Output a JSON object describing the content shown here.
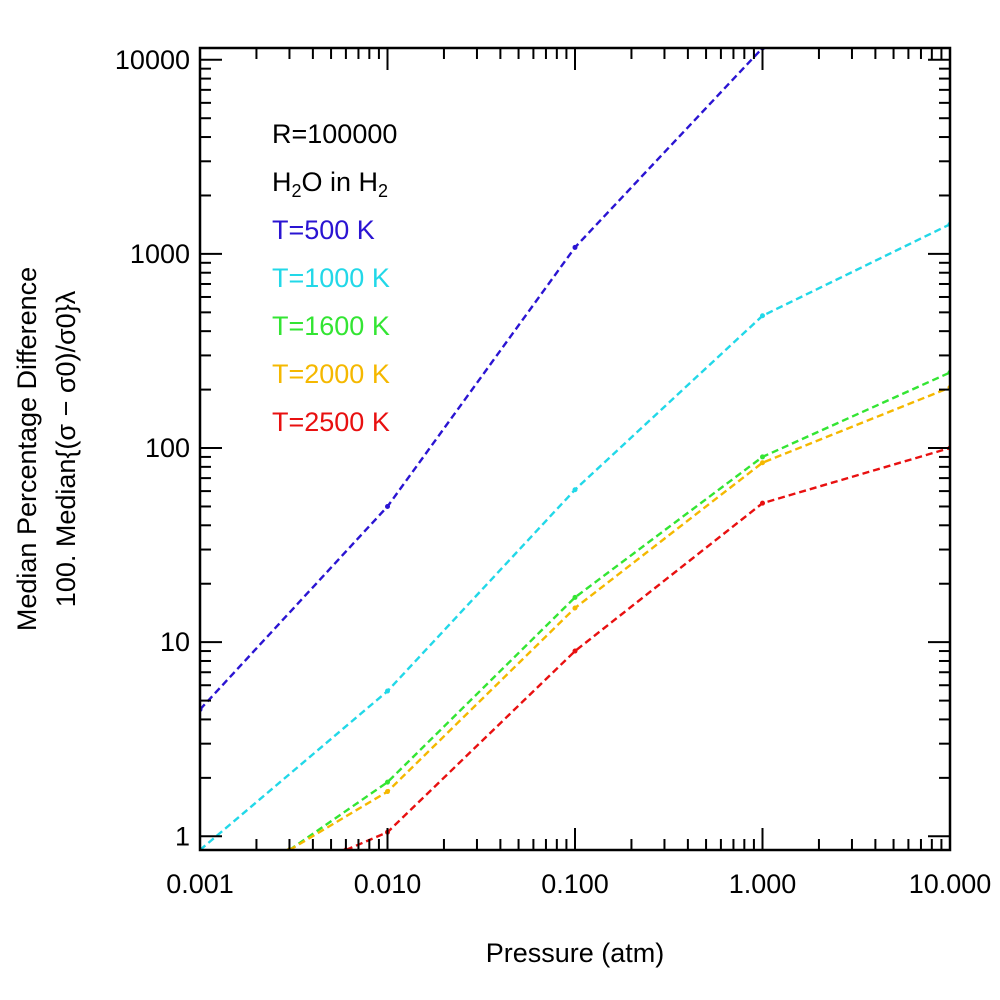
{
  "chart_data": {
    "type": "line",
    "title": "",
    "xlabel": "Pressure (atm)",
    "ylabel_line1": "Median Percentage Difference",
    "ylabel_line2": "100. Median{(σ − σ0)/σ0}λ",
    "xscale": "log",
    "yscale": "log",
    "xlim": [
      0.001,
      10.0
    ],
    "ylim": [
      0.85,
      11500
    ],
    "x_ticks": [
      0.001,
      0.01,
      0.1,
      1.0,
      10.0
    ],
    "x_tick_labels": [
      "0.001",
      "0.010",
      "0.100",
      "1.000",
      "10.000"
    ],
    "y_ticks": [
      1,
      10,
      100,
      1000,
      10000
    ],
    "y_tick_labels": [
      "1",
      "10",
      "100",
      "1000",
      "10000"
    ],
    "grid": false,
    "annotations": [
      {
        "text": "R=100000",
        "color": "#000000"
      },
      {
        "text_parts": [
          "H",
          "2",
          "O in H",
          "2"
        ],
        "color": "#000000"
      }
    ],
    "series": [
      {
        "name": "T=500 K",
        "color": "#2a14d2",
        "x": [
          0.001,
          0.01,
          0.1,
          1.0
        ],
        "y": [
          4.5,
          50,
          1080,
          11500
        ]
      },
      {
        "name": "T=1000 K",
        "color": "#22d8e8",
        "x": [
          0.001,
          0.01,
          0.1,
          1.0,
          10.0
        ],
        "y": [
          0.85,
          5.6,
          61,
          480,
          1420
        ]
      },
      {
        "name": "T=1600 K",
        "color": "#33e533",
        "x": [
          0.003,
          0.01,
          0.1,
          1.0,
          10.0
        ],
        "y": [
          0.85,
          1.9,
          17,
          90,
          245
        ]
      },
      {
        "name": "T=2000 K",
        "color": "#f5b800",
        "x": [
          0.003,
          0.01,
          0.1,
          1.0,
          10.0
        ],
        "y": [
          0.85,
          1.7,
          15,
          84,
          205
        ]
      },
      {
        "name": "T=2500 K",
        "color": "#e81010",
        "x": [
          0.006,
          0.01,
          0.1,
          1.0,
          10.0
        ],
        "y": [
          0.85,
          1.05,
          9,
          52,
          100
        ]
      }
    ]
  }
}
